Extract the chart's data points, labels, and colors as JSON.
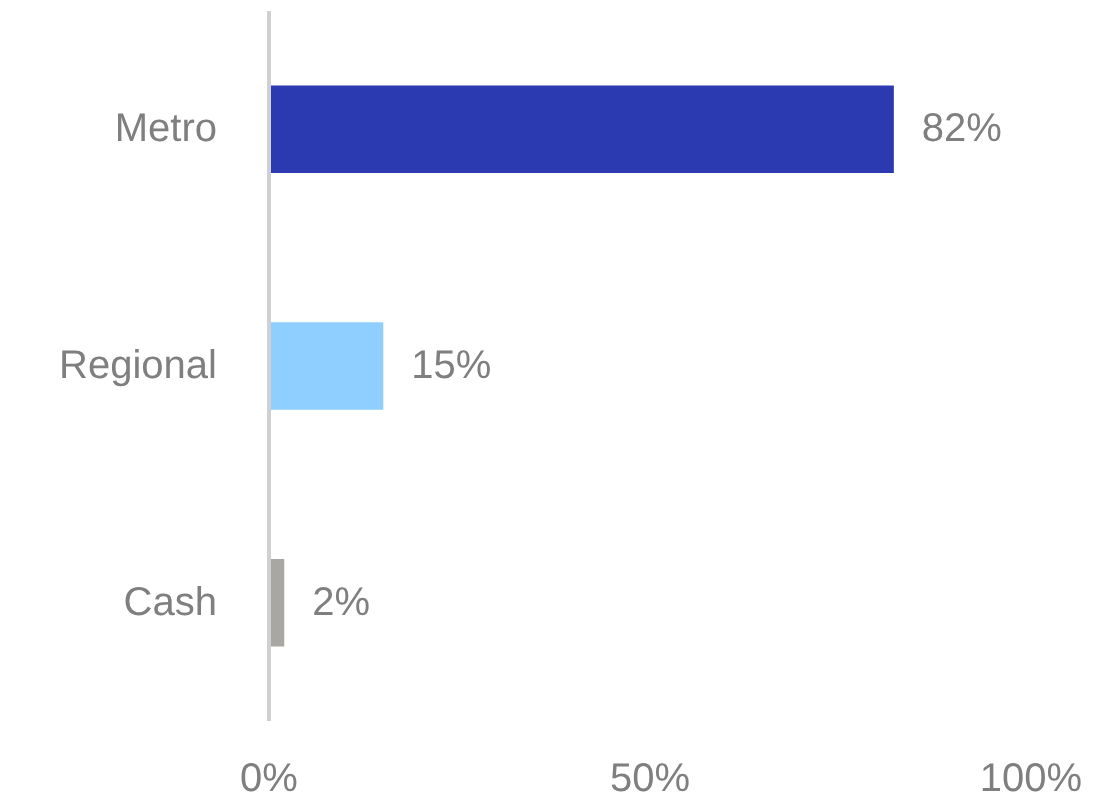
{
  "chart_data": {
    "type": "bar",
    "orientation": "horizontal",
    "categories": [
      "Metro",
      "Regional",
      "Cash"
    ],
    "values": [
      82,
      15,
      2
    ],
    "colors": [
      "#2b3ab0",
      "#8ecfff",
      "#a9a7a3"
    ],
    "value_labels": [
      "82%",
      "15%",
      "2%"
    ],
    "xlim": [
      0,
      100
    ],
    "xticks": [
      {
        "value": 0,
        "label": "0%"
      },
      {
        "value": 50,
        "label": "50%"
      },
      {
        "value": 100,
        "label": "100%"
      }
    ],
    "grid": false
  }
}
